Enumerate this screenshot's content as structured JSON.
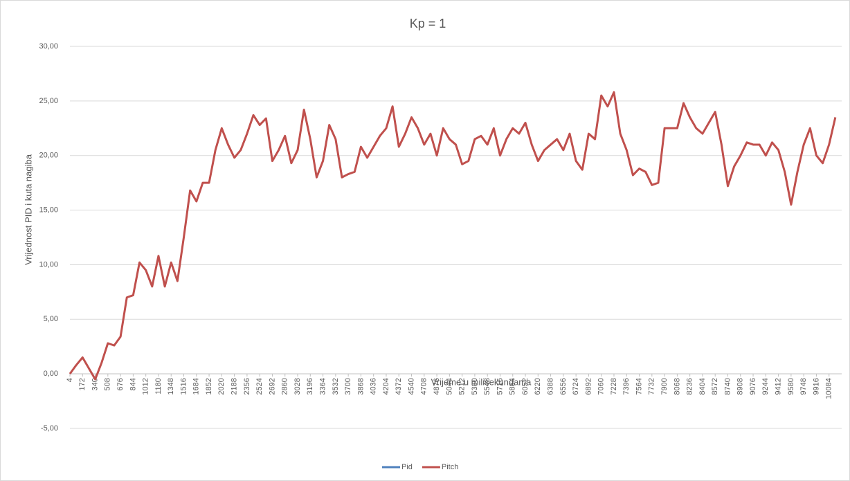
{
  "chart_data": {
    "type": "line",
    "title": "Kp = 1",
    "x_label": "Vrijeme u milisekundama",
    "y_label": "Vrijednost PID i kuta nagiba",
    "x": [
      4,
      88,
      172,
      256,
      340,
      424,
      508,
      592,
      676,
      760,
      844,
      928,
      1012,
      1096,
      1180,
      1264,
      1348,
      1432,
      1516,
      1600,
      1684,
      1768,
      1852,
      1936,
      2020,
      2104,
      2188,
      2272,
      2356,
      2440,
      2524,
      2608,
      2692,
      2776,
      2860,
      2944,
      3028,
      3112,
      3196,
      3280,
      3364,
      3448,
      3532,
      3616,
      3700,
      3784,
      3868,
      3952,
      4036,
      4120,
      4204,
      4288,
      4372,
      4456,
      4540,
      4624,
      4708,
      4792,
      4876,
      4960,
      5044,
      5128,
      5212,
      5296,
      5380,
      5464,
      5548,
      5632,
      5716,
      5800,
      5884,
      5968,
      6052,
      6136,
      6220,
      6304,
      6388,
      6472,
      6556,
      6640,
      6724,
      6808,
      6892,
      6976,
      7060,
      7144,
      7228,
      7312,
      7396,
      7480,
      7564,
      7648,
      7732,
      7816,
      7900,
      7984,
      8068,
      8152,
      8236,
      8320,
      8404,
      8488,
      8572,
      8656,
      8740,
      8824,
      8908,
      8992,
      9076,
      9160,
      9244,
      9328,
      9412,
      9496,
      9580,
      9664,
      9748,
      9832,
      9916,
      10000,
      10084,
      10168
    ],
    "series": [
      {
        "name": "Pid",
        "color": "#4f81bd",
        "values": [
          null,
          null,
          null,
          null,
          null,
          null,
          null,
          null,
          null,
          null,
          null,
          null,
          null,
          null,
          null,
          null,
          null,
          null,
          null,
          null,
          null,
          null,
          null,
          null,
          null,
          null,
          null,
          null,
          null,
          null,
          null,
          null,
          null,
          null,
          null,
          null,
          null,
          null,
          null,
          null,
          null,
          null,
          null,
          null,
          null,
          null,
          null,
          null,
          null,
          null,
          null,
          null,
          null,
          null,
          null,
          null,
          null,
          null,
          null,
          null,
          null,
          null,
          null,
          null,
          null,
          null,
          null,
          null,
          null,
          null,
          null,
          null,
          null,
          null,
          null,
          null,
          null,
          null,
          null,
          null,
          null,
          null,
          null,
          null,
          null,
          null,
          null,
          null,
          null,
          null,
          null,
          null,
          null,
          null,
          null,
          null,
          null,
          null,
          null,
          null,
          null,
          null,
          null,
          null,
          null,
          null,
          null,
          null,
          null,
          null,
          null,
          null,
          null,
          null,
          null,
          null,
          null,
          null,
          null,
          null,
          null,
          null
        ]
      },
      {
        "name": "Pitch",
        "color": "#c0504d",
        "values": [
          0.0,
          0.8,
          1.5,
          0.5,
          -0.5,
          1.0,
          2.8,
          2.6,
          3.4,
          7.0,
          7.2,
          10.2,
          9.5,
          8.0,
          10.8,
          8.0,
          10.2,
          8.5,
          12.5,
          16.8,
          15.8,
          17.5,
          17.5,
          20.5,
          22.5,
          21.0,
          19.8,
          20.5,
          22.0,
          23.7,
          22.8,
          23.4,
          19.5,
          20.5,
          21.8,
          19.3,
          20.5,
          24.2,
          21.5,
          18.0,
          19.5,
          22.8,
          21.5,
          18.0,
          18.3,
          18.5,
          20.8,
          19.8,
          20.8,
          21.8,
          22.5,
          24.5,
          20.8,
          22.0,
          23.5,
          22.5,
          21.0,
          22.0,
          20.0,
          22.5,
          21.5,
          21.0,
          19.2,
          19.5,
          21.5,
          21.8,
          21.0,
          22.5,
          20.0,
          21.5,
          22.5,
          22.0,
          23.0,
          21.0,
          19.5,
          20.5,
          21.0,
          21.5,
          20.5,
          22.0,
          19.5,
          18.7,
          22.0,
          21.5,
          25.5,
          24.5,
          25.8,
          22.0,
          20.5,
          18.2,
          18.8,
          18.5,
          17.3,
          17.5,
          22.5,
          22.5,
          22.5,
          24.8,
          23.5,
          22.5,
          22.0,
          23.0,
          24.0,
          21.0,
          17.2,
          19.0,
          20.0,
          21.2,
          21.0,
          21.0,
          20.0,
          21.2,
          20.5,
          18.5,
          15.5,
          18.5,
          21.0,
          22.5,
          20.0,
          19.3,
          21.0,
          23.5
        ]
      }
    ],
    "xlim": [
      4,
      10252
    ],
    "xticks": [
      4,
      172,
      340,
      508,
      676,
      844,
      1012,
      1180,
      1348,
      1516,
      1684,
      1852,
      2020,
      2188,
      2356,
      2524,
      2692,
      2860,
      3028,
      3196,
      3364,
      3532,
      3700,
      3868,
      4036,
      4204,
      4372,
      4540,
      4708,
      4876,
      5044,
      5212,
      5380,
      5548,
      5716,
      5884,
      6052,
      6220,
      6388,
      6556,
      6724,
      6892,
      7060,
      7228,
      7396,
      7564,
      7732,
      7900,
      8068,
      8236,
      8404,
      8572,
      8740,
      8908,
      9076,
      9244,
      9412,
      9580,
      9748,
      9916,
      10084
    ],
    "ylim": [
      -5,
      30
    ],
    "yticks": [
      {
        "value": -5,
        "label": "-5,00"
      },
      {
        "value": 0,
        "label": "0,00"
      },
      {
        "value": 5,
        "label": "5,00"
      },
      {
        "value": 10,
        "label": "10,00"
      },
      {
        "value": 15,
        "label": "15,00"
      },
      {
        "value": 20,
        "label": "20,00"
      },
      {
        "value": 25,
        "label": "25,00"
      },
      {
        "value": 30,
        "label": "30,00"
      }
    ],
    "grid": true,
    "legend": "bottom"
  }
}
